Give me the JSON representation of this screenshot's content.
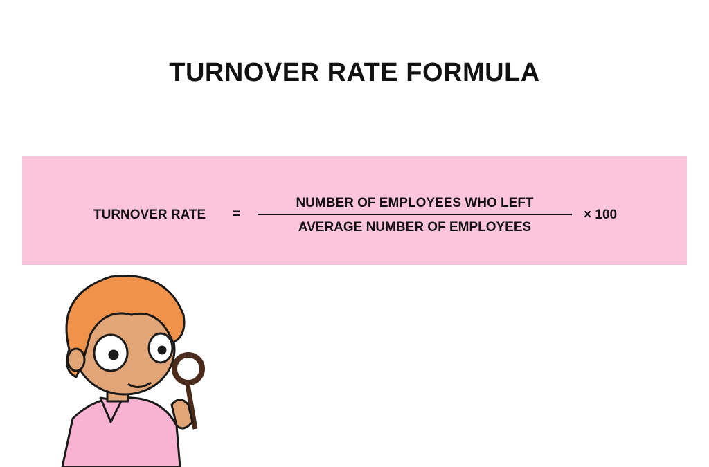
{
  "title": "TURNOVER RATE FORMULA",
  "formula": {
    "lhs": "TURNOVER RATE",
    "equals": "=",
    "numerator": "NUMBER OF EMPLOYEES WHO LEFT",
    "denominator": "AVERAGE NUMBER OF EMPLOYEES",
    "multiplier": "× 100"
  },
  "colors": {
    "box": "#fdc5dc",
    "hair": "#f0924a",
    "skin": "#e2a577",
    "shirt": "#f8b3d3"
  },
  "illustration": "woman-with-magnifying-glass"
}
